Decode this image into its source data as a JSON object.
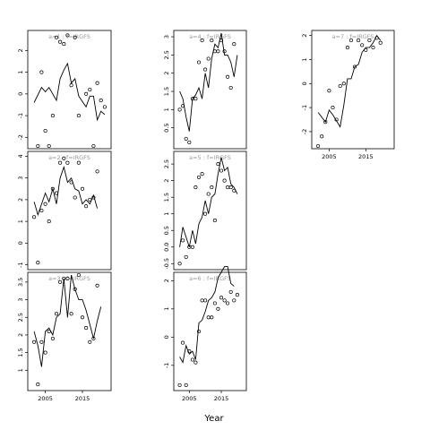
{
  "chart_data": {
    "type": "line",
    "xlabel": "Year",
    "panels": [
      {
        "title": "a=1 : f=IRGFS",
        "ylim": [
          -2.4,
          2.8
        ],
        "yticks": [
          -2,
          -1,
          0,
          1,
          2
        ],
        "xticks": [],
        "lines": [
          [
            2002,
            -0.4
          ],
          [
            2004,
            0.3
          ],
          [
            2005,
            0.1
          ],
          [
            2006,
            0.3
          ],
          [
            2008,
            -0.3
          ],
          [
            2009,
            0.7
          ],
          [
            2010,
            1.1
          ],
          [
            2011,
            1.4
          ],
          [
            2012,
            0.5
          ],
          [
            2013,
            0.7
          ],
          [
            2014,
            -0.1
          ],
          [
            2016,
            -0.6
          ],
          [
            2017,
            -0.1
          ],
          [
            2018,
            -0.1
          ],
          [
            2019,
            -1.2
          ],
          [
            2020,
            -0.8
          ],
          [
            2021,
            -0.95
          ]
        ],
        "points": [
          [
            2003,
            -2.4
          ],
          [
            2004,
            1.0
          ],
          [
            2005,
            -1.7
          ],
          [
            2006,
            -2.4
          ],
          [
            2007,
            -1.0
          ],
          [
            2008,
            2.6
          ],
          [
            2009,
            2.4
          ],
          [
            2010,
            2.3
          ],
          [
            2011,
            2.7
          ],
          [
            2012,
            0.4
          ],
          [
            2013,
            2.6
          ],
          [
            2014,
            -1.0
          ],
          [
            2016,
            0.0
          ],
          [
            2017,
            0.2
          ],
          [
            2018,
            -2.4
          ],
          [
            2019,
            0.5
          ],
          [
            2020,
            -0.3
          ],
          [
            2021,
            -0.6
          ]
        ]
      },
      {
        "title": "a=2 : f=IRGFS",
        "ylim": [
          -1.1,
          4.1
        ],
        "yticks": [
          -1,
          0,
          1,
          2,
          3,
          4
        ],
        "xticks": [],
        "lines": [
          [
            2002,
            1.9
          ],
          [
            2003,
            1.3
          ],
          [
            2005,
            2.3
          ],
          [
            2006,
            1.9
          ],
          [
            2007,
            2.5
          ],
          [
            2008,
            1.8
          ],
          [
            2009,
            3.0
          ],
          [
            2010,
            3.5
          ],
          [
            2011,
            2.8
          ],
          [
            2012,
            3.0
          ],
          [
            2013,
            2.5
          ],
          [
            2014,
            2.4
          ],
          [
            2015,
            1.8
          ],
          [
            2016,
            2.0
          ],
          [
            2017,
            1.8
          ],
          [
            2018,
            2.2
          ],
          [
            2019,
            1.6
          ]
        ],
        "points": [
          [
            2002,
            1.2
          ],
          [
            2003,
            -0.9
          ],
          [
            2004,
            1.5
          ],
          [
            2005,
            1.8
          ],
          [
            2006,
            1.0
          ],
          [
            2007,
            2.5
          ],
          [
            2008,
            2.3
          ],
          [
            2009,
            3.7
          ],
          [
            2010,
            3.9
          ],
          [
            2011,
            3.7
          ],
          [
            2012,
            2.8
          ],
          [
            2013,
            2.1
          ],
          [
            2014,
            3.7
          ],
          [
            2015,
            2.5
          ],
          [
            2016,
            1.7
          ],
          [
            2017,
            2.0
          ],
          [
            2018,
            2.1
          ],
          [
            2019,
            3.3
          ]
        ]
      },
      {
        "title": "a=3 : f=IRGFS",
        "ylim": [
          0.5,
          3.7
        ],
        "yticks": [
          1.0,
          1.5,
          2.0,
          2.5,
          3.0,
          3.5
        ],
        "xticks": [
          2005,
          2015
        ],
        "lines": [
          [
            2002,
            2.1
          ],
          [
            2003,
            1.7
          ],
          [
            2004,
            1.1
          ],
          [
            2005,
            2.1
          ],
          [
            2006,
            2.2
          ],
          [
            2007,
            2.0
          ],
          [
            2008,
            2.5
          ],
          [
            2009,
            2.6
          ],
          [
            2010,
            3.6
          ],
          [
            2011,
            2.5
          ],
          [
            2012,
            3.7
          ],
          [
            2013,
            3.3
          ],
          [
            2014,
            3.0
          ],
          [
            2015,
            3.0
          ],
          [
            2016,
            2.7
          ],
          [
            2017,
            2.3
          ],
          [
            2018,
            1.9
          ],
          [
            2019,
            2.4
          ],
          [
            2020,
            2.8
          ]
        ],
        "points": [
          [
            2002,
            1.8
          ],
          [
            2003,
            0.6
          ],
          [
            2004,
            1.8
          ],
          [
            2005,
            1.5
          ],
          [
            2006,
            2.1
          ],
          [
            2007,
            1.9
          ],
          [
            2008,
            2.6
          ],
          [
            2009,
            3.5
          ],
          [
            2010,
            3.6
          ],
          [
            2011,
            3.6
          ],
          [
            2012,
            2.6
          ],
          [
            2013,
            3.3
          ],
          [
            2014,
            3.7
          ],
          [
            2015,
            2.5
          ],
          [
            2016,
            2.2
          ],
          [
            2017,
            1.8
          ],
          [
            2018,
            1.9
          ],
          [
            2019,
            3.4
          ]
        ]
      },
      {
        "title": "a=4 : f=IRGFS",
        "ylim": [
          0.0,
          3.1
        ],
        "yticks": [
          0.5,
          1.0,
          1.5,
          2.0,
          2.5,
          3.0
        ],
        "xticks": [],
        "lines": [
          [
            2002,
            1.5
          ],
          [
            2003,
            1.3
          ],
          [
            2004,
            0.8
          ],
          [
            2005,
            0.4
          ],
          [
            2006,
            1.3
          ],
          [
            2007,
            1.4
          ],
          [
            2008,
            1.6
          ],
          [
            2009,
            1.3
          ],
          [
            2010,
            2.0
          ],
          [
            2011,
            1.6
          ],
          [
            2012,
            2.4
          ],
          [
            2013,
            2.8
          ],
          [
            2014,
            2.7
          ],
          [
            2015,
            3.1
          ],
          [
            2016,
            2.5
          ],
          [
            2017,
            2.5
          ],
          [
            2018,
            2.3
          ],
          [
            2019,
            1.9
          ],
          [
            2020,
            2.5
          ]
        ],
        "points": [
          [
            2002,
            1.0
          ],
          [
            2003,
            1.1
          ],
          [
            2004,
            0.2
          ],
          [
            2005,
            0.1
          ],
          [
            2006,
            1.3
          ],
          [
            2007,
            1.3
          ],
          [
            2008,
            2.3
          ],
          [
            2009,
            2.9
          ],
          [
            2010,
            2.1
          ],
          [
            2011,
            2.4
          ],
          [
            2012,
            2.9
          ],
          [
            2013,
            2.6
          ],
          [
            2014,
            2.6
          ],
          [
            2015,
            2.9
          ],
          [
            2016,
            2.6
          ],
          [
            2017,
            1.9
          ],
          [
            2018,
            1.6
          ],
          [
            2019,
            2.8
          ]
        ]
      },
      {
        "title": "a=5 : f=IRGFS",
        "ylim": [
          -0.6,
          2.8
        ],
        "yticks": [
          -0.5,
          0.0,
          0.5,
          1.0,
          1.5,
          2.0,
          2.5
        ],
        "xticks": [],
        "lines": [
          [
            2002,
            0.0
          ],
          [
            2003,
            0.6
          ],
          [
            2004,
            0.3
          ],
          [
            2005,
            0.0
          ],
          [
            2006,
            0.5
          ],
          [
            2007,
            0.1
          ],
          [
            2008,
            0.7
          ],
          [
            2009,
            0.9
          ],
          [
            2010,
            1.4
          ],
          [
            2011,
            1.0
          ],
          [
            2012,
            1.5
          ],
          [
            2013,
            1.6
          ],
          [
            2014,
            2.2
          ],
          [
            2015,
            2.7
          ],
          [
            2016,
            2.3
          ],
          [
            2017,
            2.4
          ],
          [
            2018,
            1.9
          ],
          [
            2019,
            1.8
          ],
          [
            2020,
            1.6
          ]
        ],
        "points": [
          [
            2002,
            -0.5
          ],
          [
            2003,
            0.2
          ],
          [
            2004,
            -0.3
          ],
          [
            2005,
            0.0
          ],
          [
            2006,
            0.0
          ],
          [
            2007,
            1.8
          ],
          [
            2008,
            2.1
          ],
          [
            2009,
            2.2
          ],
          [
            2010,
            1.0
          ],
          [
            2011,
            1.6
          ],
          [
            2012,
            1.8
          ],
          [
            2013,
            0.8
          ],
          [
            2014,
            2.5
          ],
          [
            2015,
            2.3
          ],
          [
            2016,
            2.0
          ],
          [
            2017,
            1.8
          ],
          [
            2018,
            1.8
          ],
          [
            2019,
            1.7
          ]
        ]
      },
      {
        "title": "a=6 : f=IRGFS",
        "ylim": [
          -1.8,
          2.2
        ],
        "yticks": [
          -1,
          0,
          1,
          2
        ],
        "xticks": [
          2005,
          2015
        ],
        "lines": [
          [
            2002,
            -0.7
          ],
          [
            2003,
            -0.9
          ],
          [
            2004,
            -0.3
          ],
          [
            2005,
            -0.6
          ],
          [
            2006,
            -0.5
          ],
          [
            2007,
            -0.8
          ],
          [
            2008,
            0.5
          ],
          [
            2009,
            0.6
          ],
          [
            2010,
            0.9
          ],
          [
            2011,
            1.3
          ],
          [
            2012,
            1.4
          ],
          [
            2013,
            1.6
          ],
          [
            2014,
            2.1
          ],
          [
            2015,
            2.3
          ],
          [
            2016,
            2.5
          ],
          [
            2017,
            2.5
          ],
          [
            2018,
            1.9
          ],
          [
            2019,
            1.8
          ]
        ],
        "points": [
          [
            2002,
            -1.7
          ],
          [
            2003,
            -0.2
          ],
          [
            2004,
            -1.7
          ],
          [
            2005,
            -0.5
          ],
          [
            2006,
            -0.8
          ],
          [
            2007,
            -0.9
          ],
          [
            2008,
            0.2
          ],
          [
            2009,
            1.3
          ],
          [
            2010,
            1.3
          ],
          [
            2011,
            0.7
          ],
          [
            2012,
            0.7
          ],
          [
            2013,
            1.2
          ],
          [
            2014,
            1.0
          ],
          [
            2015,
            1.4
          ],
          [
            2016,
            1.3
          ],
          [
            2017,
            1.2
          ],
          [
            2018,
            1.6
          ],
          [
            2019,
            1.3
          ],
          [
            2020,
            1.5
          ]
        ]
      },
      {
        "title": "a=7 : f=IRGFS",
        "ylim": [
          -2.6,
          2.1
        ],
        "yticks": [
          -2,
          -1,
          0,
          1,
          2
        ],
        "xticks": [
          2005,
          2015
        ],
        "lines": [
          [
            2002,
            -1.2
          ],
          [
            2004,
            -1.6
          ],
          [
            2005,
            -1.1
          ],
          [
            2006,
            -1.3
          ],
          [
            2008,
            -1.8
          ],
          [
            2009,
            -0.9
          ],
          [
            2010,
            0.2
          ],
          [
            2011,
            0.2
          ],
          [
            2012,
            0.7
          ],
          [
            2013,
            0.8
          ],
          [
            2014,
            1.3
          ],
          [
            2015,
            1.5
          ],
          [
            2016,
            1.5
          ],
          [
            2017,
            1.7
          ],
          [
            2018,
            2.0
          ],
          [
            2019,
            1.8
          ]
        ],
        "points": [
          [
            2002,
            -2.6
          ],
          [
            2003,
            -2.2
          ],
          [
            2004,
            -1.6
          ],
          [
            2005,
            -0.3
          ],
          [
            2006,
            -1.0
          ],
          [
            2007,
            -1.5
          ],
          [
            2008,
            -0.1
          ],
          [
            2009,
            0.0
          ],
          [
            2010,
            1.5
          ],
          [
            2011,
            1.8
          ],
          [
            2012,
            0.7
          ],
          [
            2013,
            1.8
          ],
          [
            2014,
            1.6
          ],
          [
            2015,
            1.4
          ],
          [
            2016,
            1.8
          ],
          [
            2017,
            1.5
          ],
          [
            2018,
            1.9
          ],
          [
            2019,
            1.7
          ]
        ]
      }
    ]
  }
}
